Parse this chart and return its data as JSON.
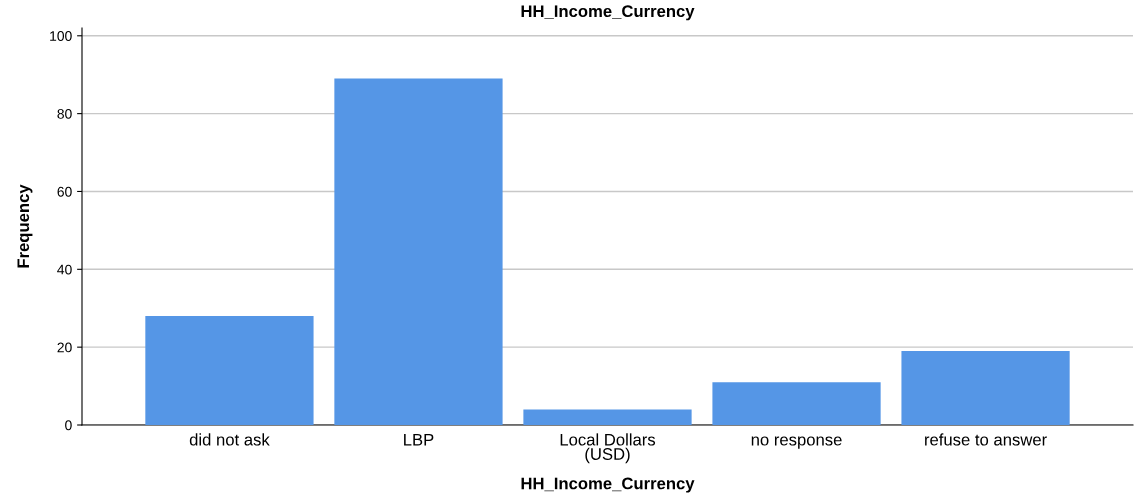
{
  "chart_data": {
    "type": "bar",
    "title": "HH_Income_Currency",
    "xlabel": "HH_Income_Currency",
    "ylabel": "Frequency",
    "categories": [
      "did not ask",
      "LBP",
      "Local Dollars\n(USD)",
      "no response",
      "refuse to answer"
    ],
    "values": [
      28,
      89,
      4,
      11,
      19
    ],
    "color": "#5596e6",
    "ylim": [
      0,
      102
    ],
    "yticks": [
      0,
      20,
      40,
      60,
      80,
      100
    ],
    "grid": "y",
    "legend": false
  }
}
